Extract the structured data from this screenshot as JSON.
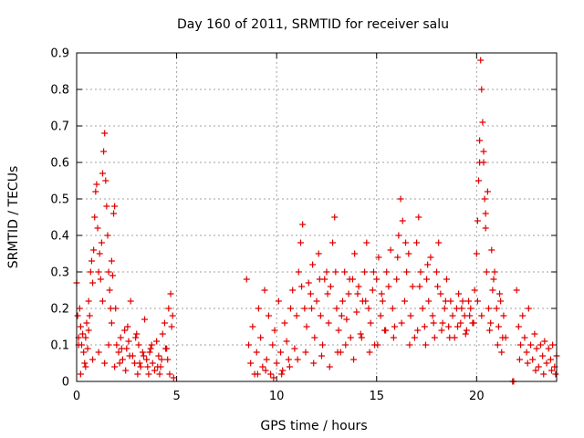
{
  "chart_data": {
    "type": "scatter",
    "title": "Day 160 of 2011, SRMTID for receiver salu",
    "xlabel": "GPS time / hours",
    "ylabel": "SRMTID / TECUs",
    "xlim": [
      0,
      24
    ],
    "ylim": [
      0,
      0.9
    ],
    "xticks": [
      0,
      5,
      10,
      15,
      20
    ],
    "yticks": [
      0,
      0.1,
      0.2,
      0.3,
      0.4,
      0.5,
      0.6,
      0.7,
      0.8,
      0.9
    ],
    "grid": true,
    "marker": "+",
    "color": "#e00000",
    "series": [
      {
        "name": "SRMTID",
        "points": [
          [
            0.0,
            0.27
          ],
          [
            0.05,
            0.18
          ],
          [
            0.1,
            0.12
          ],
          [
            0.15,
            0.2
          ],
          [
            0.2,
            0.15
          ],
          [
            0.25,
            0.1
          ],
          [
            0.3,
            0.13
          ],
          [
            0.35,
            0.08
          ],
          [
            0.4,
            0.05
          ],
          [
            0.45,
            0.12
          ],
          [
            0.5,
            0.16
          ],
          [
            0.55,
            0.09
          ],
          [
            0.6,
            0.22
          ],
          [
            0.65,
            0.18
          ],
          [
            0.7,
            0.3
          ],
          [
            0.75,
            0.33
          ],
          [
            0.8,
            0.27
          ],
          [
            0.85,
            0.36
          ],
          [
            0.9,
            0.45
          ],
          [
            0.95,
            0.52
          ],
          [
            1.0,
            0.54
          ],
          [
            1.05,
            0.42
          ],
          [
            1.1,
            0.3
          ],
          [
            1.15,
            0.35
          ],
          [
            1.2,
            0.28
          ],
          [
            1.25,
            0.38
          ],
          [
            1.3,
            0.57
          ],
          [
            1.35,
            0.63
          ],
          [
            1.4,
            0.68
          ],
          [
            1.45,
            0.55
          ],
          [
            1.5,
            0.48
          ],
          [
            1.55,
            0.4
          ],
          [
            1.6,
            0.3
          ],
          [
            1.65,
            0.25
          ],
          [
            1.7,
            0.2
          ],
          [
            1.75,
            0.33
          ],
          [
            1.8,
            0.29
          ],
          [
            1.85,
            0.46
          ],
          [
            1.9,
            0.48
          ],
          [
            1.95,
            0.2
          ],
          [
            2.0,
            0.1
          ],
          [
            2.1,
            0.08
          ],
          [
            2.2,
            0.12
          ],
          [
            2.3,
            0.06
          ],
          [
            2.4,
            0.14
          ],
          [
            2.5,
            0.09
          ],
          [
            2.6,
            0.11
          ],
          [
            2.7,
            0.22
          ],
          [
            2.8,
            0.07
          ],
          [
            2.9,
            0.05
          ],
          [
            3.0,
            0.13
          ],
          [
            3.1,
            0.1
          ],
          [
            3.2,
            0.04
          ],
          [
            3.3,
            0.08
          ],
          [
            3.4,
            0.17
          ],
          [
            3.5,
            0.06
          ],
          [
            3.6,
            0.02
          ],
          [
            3.7,
            0.09
          ],
          [
            3.8,
            0.05
          ],
          [
            3.9,
            0.03
          ],
          [
            4.0,
            0.11
          ],
          [
            4.1,
            0.07
          ],
          [
            4.2,
            0.04
          ],
          [
            4.3,
            0.13
          ],
          [
            4.4,
            0.16
          ],
          [
            4.5,
            0.09
          ],
          [
            4.6,
            0.2
          ],
          [
            4.7,
            0.24
          ],
          [
            4.75,
            0.15
          ],
          [
            4.8,
            0.18
          ],
          [
            1.1,
            0.08
          ],
          [
            1.6,
            0.1
          ],
          [
            2.15,
            0.05
          ],
          [
            2.55,
            0.15
          ],
          [
            2.95,
            0.12
          ],
          [
            3.35,
            0.07
          ],
          [
            3.75,
            0.1
          ],
          [
            4.15,
            0.02
          ],
          [
            4.55,
            0.06
          ],
          [
            4.85,
            0.01
          ],
          [
            0.2,
            0.02
          ],
          [
            0.45,
            0.04
          ],
          [
            0.8,
            0.06
          ],
          [
            1.4,
            0.05
          ],
          [
            1.9,
            0.04
          ],
          [
            2.45,
            0.03
          ],
          [
            3.05,
            0.02
          ],
          [
            3.55,
            0.04
          ],
          [
            4.25,
            0.06
          ],
          [
            4.65,
            0.02
          ],
          [
            8.5,
            0.28
          ],
          [
            8.6,
            0.1
          ],
          [
            8.7,
            0.05
          ],
          [
            8.8,
            0.15
          ],
          [
            8.9,
            0.02
          ],
          [
            9.0,
            0.08
          ],
          [
            9.1,
            0.2
          ],
          [
            9.2,
            0.12
          ],
          [
            9.3,
            0.04
          ],
          [
            9.4,
            0.25
          ],
          [
            9.5,
            0.06
          ],
          [
            9.6,
            0.18
          ],
          [
            9.7,
            0.02
          ],
          [
            9.8,
            0.1
          ],
          [
            9.9,
            0.14
          ],
          [
            10.0,
            0.05
          ],
          [
            10.1,
            0.22
          ],
          [
            10.2,
            0.08
          ],
          [
            10.3,
            0.03
          ],
          [
            10.4,
            0.16
          ],
          [
            10.5,
            0.11
          ],
          [
            10.6,
            0.06
          ],
          [
            10.7,
            0.2
          ],
          [
            10.8,
            0.25
          ],
          [
            10.9,
            0.09
          ],
          [
            11.0,
            0.18
          ],
          [
            11.1,
            0.3
          ],
          [
            11.2,
            0.38
          ],
          [
            11.3,
            0.43
          ],
          [
            11.4,
            0.2
          ],
          [
            11.5,
            0.15
          ],
          [
            11.6,
            0.27
          ],
          [
            11.7,
            0.24
          ],
          [
            11.8,
            0.32
          ],
          [
            11.9,
            0.12
          ],
          [
            12.0,
            0.22
          ],
          [
            12.1,
            0.35
          ],
          [
            12.2,
            0.18
          ],
          [
            12.3,
            0.1
          ],
          [
            12.4,
            0.28
          ],
          [
            12.5,
            0.3
          ],
          [
            12.6,
            0.16
          ],
          [
            12.7,
            0.26
          ],
          [
            12.8,
            0.38
          ],
          [
            12.9,
            0.45
          ],
          [
            13.0,
            0.2
          ],
          [
            13.1,
            0.14
          ],
          [
            13.2,
            0.08
          ],
          [
            13.3,
            0.22
          ],
          [
            13.4,
            0.3
          ],
          [
            13.5,
            0.17
          ],
          [
            13.6,
            0.24
          ],
          [
            13.7,
            0.12
          ],
          [
            13.8,
            0.28
          ],
          [
            13.9,
            0.35
          ],
          [
            14.0,
            0.19
          ],
          [
            14.1,
            0.26
          ],
          [
            14.2,
            0.13
          ],
          [
            14.3,
            0.22
          ],
          [
            14.4,
            0.3
          ],
          [
            14.5,
            0.38
          ],
          [
            14.6,
            0.2
          ],
          [
            14.7,
            0.16
          ],
          [
            14.8,
            0.25
          ],
          [
            14.9,
            0.1
          ],
          [
            15.0,
            0.28
          ],
          [
            15.1,
            0.34
          ],
          [
            15.2,
            0.18
          ],
          [
            15.3,
            0.22
          ],
          [
            15.4,
            0.14
          ],
          [
            15.5,
            0.3
          ],
          [
            15.6,
            0.26
          ],
          [
            15.7,
            0.36
          ],
          [
            15.8,
            0.2
          ],
          [
            15.9,
            0.15
          ],
          [
            16.0,
            0.28
          ],
          [
            16.1,
            0.4
          ],
          [
            16.2,
            0.5
          ],
          [
            16.3,
            0.44
          ],
          [
            16.4,
            0.22
          ],
          [
            16.5,
            0.3
          ],
          [
            16.6,
            0.35
          ],
          [
            16.7,
            0.18
          ],
          [
            16.8,
            0.26
          ],
          [
            16.9,
            0.12
          ],
          [
            17.0,
            0.38
          ],
          [
            17.1,
            0.45
          ],
          [
            17.2,
            0.3
          ],
          [
            17.3,
            0.2
          ],
          [
            17.4,
            0.15
          ],
          [
            17.5,
            0.28
          ],
          [
            17.6,
            0.22
          ],
          [
            17.7,
            0.34
          ],
          [
            17.8,
            0.18
          ],
          [
            17.9,
            0.12
          ],
          [
            18.0,
            0.3
          ],
          [
            18.1,
            0.38
          ],
          [
            18.2,
            0.24
          ],
          [
            18.3,
            0.16
          ],
          [
            18.4,
            0.2
          ],
          [
            18.5,
            0.28
          ],
          [
            18.6,
            0.15
          ],
          [
            18.7,
            0.22
          ],
          [
            18.8,
            0.18
          ],
          [
            18.9,
            0.12
          ],
          [
            19.0,
            0.2
          ],
          [
            19.1,
            0.24
          ],
          [
            19.2,
            0.16
          ],
          [
            19.3,
            0.22
          ],
          [
            19.4,
            0.18
          ],
          [
            19.5,
            0.14
          ],
          [
            19.6,
            0.22
          ],
          [
            19.7,
            0.2
          ],
          [
            19.8,
            0.16
          ],
          [
            19.9,
            0.25
          ],
          [
            20.0,
            0.35
          ],
          [
            20.1,
            0.55
          ],
          [
            20.15,
            0.66
          ],
          [
            20.2,
            0.88
          ],
          [
            20.25,
            0.8
          ],
          [
            20.3,
            0.71
          ],
          [
            20.35,
            0.6
          ],
          [
            20.4,
            0.5
          ],
          [
            20.45,
            0.42
          ],
          [
            20.5,
            0.3
          ],
          [
            20.6,
            0.2
          ],
          [
            20.7,
            0.16
          ],
          [
            20.8,
            0.25
          ],
          [
            20.9,
            0.3
          ],
          [
            21.0,
            0.2
          ],
          [
            21.1,
            0.15
          ],
          [
            21.2,
            0.22
          ],
          [
            21.3,
            0.12
          ],
          [
            22.0,
            0.25
          ],
          [
            22.1,
            0.15
          ],
          [
            22.2,
            0.1
          ],
          [
            22.3,
            0.18
          ],
          [
            22.4,
            0.12
          ],
          [
            22.5,
            0.08
          ],
          [
            22.6,
            0.2
          ],
          [
            22.7,
            0.1
          ],
          [
            22.8,
            0.06
          ],
          [
            22.9,
            0.13
          ],
          [
            23.0,
            0.09
          ],
          [
            23.1,
            0.04
          ],
          [
            23.2,
            0.1
          ],
          [
            23.3,
            0.07
          ],
          [
            23.4,
            0.11
          ],
          [
            23.5,
            0.05
          ],
          [
            23.6,
            0.09
          ],
          [
            23.7,
            0.06
          ],
          [
            23.8,
            0.1
          ],
          [
            23.9,
            0.04
          ],
          [
            24.0,
            0.07
          ],
          [
            21.8,
            0.0
          ],
          [
            21.85,
            0.0
          ],
          [
            9.05,
            0.02
          ],
          [
            9.45,
            0.03
          ],
          [
            9.85,
            0.01
          ],
          [
            10.25,
            0.02
          ],
          [
            10.65,
            0.04
          ],
          [
            11.05,
            0.06
          ],
          [
            11.45,
            0.08
          ],
          [
            11.85,
            0.05
          ],
          [
            12.25,
            0.07
          ],
          [
            12.65,
            0.04
          ],
          [
            13.05,
            0.08
          ],
          [
            13.45,
            0.1
          ],
          [
            13.85,
            0.06
          ],
          [
            14.25,
            0.12
          ],
          [
            14.65,
            0.08
          ],
          [
            15.05,
            0.1
          ],
          [
            15.45,
            0.14
          ],
          [
            15.85,
            0.12
          ],
          [
            16.25,
            0.16
          ],
          [
            16.65,
            0.1
          ],
          [
            17.05,
            0.14
          ],
          [
            17.45,
            0.1
          ],
          [
            17.85,
            0.16
          ],
          [
            18.25,
            0.14
          ],
          [
            18.65,
            0.12
          ],
          [
            19.05,
            0.15
          ],
          [
            19.45,
            0.13
          ],
          [
            19.85,
            0.16
          ],
          [
            20.25,
            0.18
          ],
          [
            20.65,
            0.14
          ],
          [
            21.05,
            0.1
          ],
          [
            21.25,
            0.08
          ],
          [
            22.15,
            0.06
          ],
          [
            22.55,
            0.05
          ],
          [
            22.95,
            0.03
          ],
          [
            23.35,
            0.02
          ],
          [
            23.75,
            0.03
          ],
          [
            23.95,
            0.02
          ],
          [
            0.1,
            0.1
          ],
          [
            0.6,
            0.14
          ],
          [
            1.3,
            0.22
          ],
          [
            1.75,
            0.16
          ],
          [
            2.25,
            0.09
          ],
          [
            2.65,
            0.07
          ],
          [
            3.15,
            0.05
          ],
          [
            3.65,
            0.08
          ],
          [
            4.05,
            0.04
          ],
          [
            4.45,
            0.09
          ],
          [
            15.25,
            0.24
          ],
          [
            16.05,
            0.34
          ],
          [
            16.45,
            0.38
          ],
          [
            17.15,
            0.26
          ],
          [
            17.55,
            0.32
          ],
          [
            18.05,
            0.26
          ],
          [
            18.45,
            0.22
          ],
          [
            19.25,
            0.2
          ],
          [
            19.65,
            0.18
          ],
          [
            20.05,
            0.22
          ],
          [
            11.25,
            0.26
          ],
          [
            11.75,
            0.2
          ],
          [
            12.15,
            0.28
          ],
          [
            12.55,
            0.24
          ],
          [
            12.95,
            0.3
          ],
          [
            13.25,
            0.18
          ],
          [
            13.65,
            0.28
          ],
          [
            14.05,
            0.24
          ],
          [
            14.45,
            0.22
          ],
          [
            14.85,
            0.3
          ],
          [
            20.55,
            0.52
          ],
          [
            20.45,
            0.46
          ],
          [
            20.35,
            0.63
          ],
          [
            20.15,
            0.6
          ],
          [
            20.05,
            0.44
          ],
          [
            20.75,
            0.36
          ],
          [
            20.85,
            0.28
          ],
          [
            21.15,
            0.24
          ],
          [
            21.35,
            0.18
          ],
          [
            21.45,
            0.12
          ]
        ]
      }
    ]
  }
}
